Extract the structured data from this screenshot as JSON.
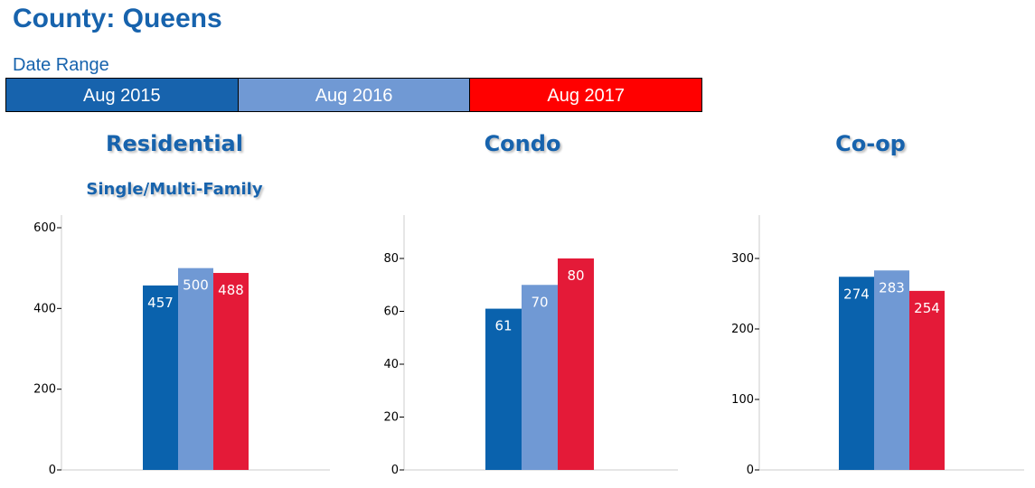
{
  "header": {
    "title": "County: Queens",
    "date_range_label": "Date Range"
  },
  "legend": [
    {
      "label": "Aug 2015",
      "color": "#1763ad"
    },
    {
      "label": "Aug 2016",
      "color": "#7099d4"
    },
    {
      "label": "Aug 2017",
      "color": "#ff0000"
    }
  ],
  "series_colors": [
    "#0a62ad",
    "#7099d4",
    "#e41a38"
  ],
  "chart_data": [
    {
      "type": "bar",
      "title": "Residential",
      "subtitle": "Single/Multi-Family",
      "categories": [
        "Aug 2015",
        "Aug 2016",
        "Aug 2017"
      ],
      "values": [
        457,
        500,
        488
      ],
      "ylim": [
        0,
        600
      ],
      "yticks": [
        0,
        200,
        400,
        600
      ],
      "grid": false,
      "legend": "top"
    },
    {
      "type": "bar",
      "title": "Condo",
      "categories": [
        "Aug 2015",
        "Aug 2016",
        "Aug 2017"
      ],
      "values": [
        61,
        70,
        80
      ],
      "ylim": [
        0,
        80
      ],
      "yticks": [
        0,
        20,
        40,
        60,
        80
      ],
      "grid": false,
      "legend": "top"
    },
    {
      "type": "bar",
      "title": "Co-op",
      "categories": [
        "Aug 2015",
        "Aug 2016",
        "Aug 2017"
      ],
      "values": [
        274,
        283,
        254
      ],
      "ylim": [
        0,
        300
      ],
      "yticks": [
        0,
        100,
        200,
        300
      ],
      "grid": false,
      "legend": "top"
    }
  ]
}
